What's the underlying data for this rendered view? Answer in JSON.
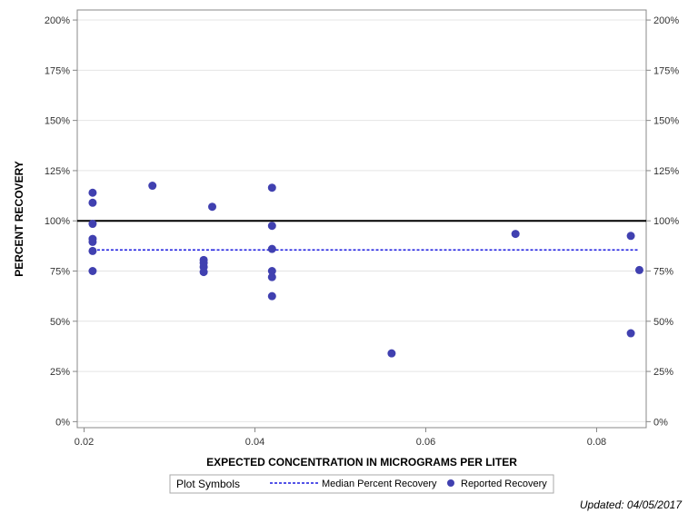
{
  "chart_data": {
    "type": "scatter",
    "xlabel": "EXPECTED CONCENTRATION IN MICROGRAMS PER LITER",
    "ylabel": "PERCENT RECOVERY",
    "xlim": [
      0.0192,
      0.0858
    ],
    "ylim": [
      -0.03,
      2.05
    ],
    "x_ticks": [
      0.02,
      0.04,
      0.06,
      0.08
    ],
    "x_tick_labels": [
      "0.02",
      "0.04",
      "0.06",
      "0.08"
    ],
    "y_ticks": [
      0,
      0.25,
      0.5,
      0.75,
      1.0,
      1.25,
      1.5,
      1.75,
      2.0
    ],
    "y_tick_labels": [
      "0%",
      "25%",
      "50%",
      "75%",
      "100%",
      "125%",
      "150%",
      "175%",
      "200%"
    ],
    "grid": true,
    "reference_line": 1.0,
    "median_segments": [
      {
        "x": [
          0.021,
          0.035
        ],
        "y": 0.855
      },
      {
        "x": [
          0.035,
          0.085
        ],
        "y": 0.855
      }
    ],
    "series": [
      {
        "name": "Reported Recovery",
        "color": "#4040b0",
        "points": [
          {
            "x": 0.021,
            "y": 1.14
          },
          {
            "x": 0.021,
            "y": 1.09
          },
          {
            "x": 0.021,
            "y": 0.985
          },
          {
            "x": 0.021,
            "y": 0.91
          },
          {
            "x": 0.021,
            "y": 0.895
          },
          {
            "x": 0.021,
            "y": 0.85
          },
          {
            "x": 0.021,
            "y": 0.75
          },
          {
            "x": 0.028,
            "y": 1.175
          },
          {
            "x": 0.034,
            "y": 0.805
          },
          {
            "x": 0.034,
            "y": 0.79
          },
          {
            "x": 0.034,
            "y": 0.77
          },
          {
            "x": 0.034,
            "y": 0.745
          },
          {
            "x": 0.035,
            "y": 1.07
          },
          {
            "x": 0.042,
            "y": 1.165
          },
          {
            "x": 0.042,
            "y": 0.975
          },
          {
            "x": 0.042,
            "y": 0.86
          },
          {
            "x": 0.042,
            "y": 0.75
          },
          {
            "x": 0.042,
            "y": 0.72
          },
          {
            "x": 0.042,
            "y": 0.625
          },
          {
            "x": 0.056,
            "y": 0.34
          },
          {
            "x": 0.0705,
            "y": 0.935
          },
          {
            "x": 0.084,
            "y": 0.925
          },
          {
            "x": 0.084,
            "y": 0.44
          },
          {
            "x": 0.085,
            "y": 0.755
          }
        ]
      }
    ],
    "legend": {
      "position": "bottom",
      "title": "Plot Symbols",
      "entries": [
        {
          "label": "Median Percent Recovery",
          "style": "dashed-line",
          "color": "#1a1adf"
        },
        {
          "label": "Reported Recovery",
          "style": "marker",
          "color": "#4040b0"
        }
      ]
    }
  },
  "footer": {
    "updated": "Updated: 04/05/2017"
  }
}
